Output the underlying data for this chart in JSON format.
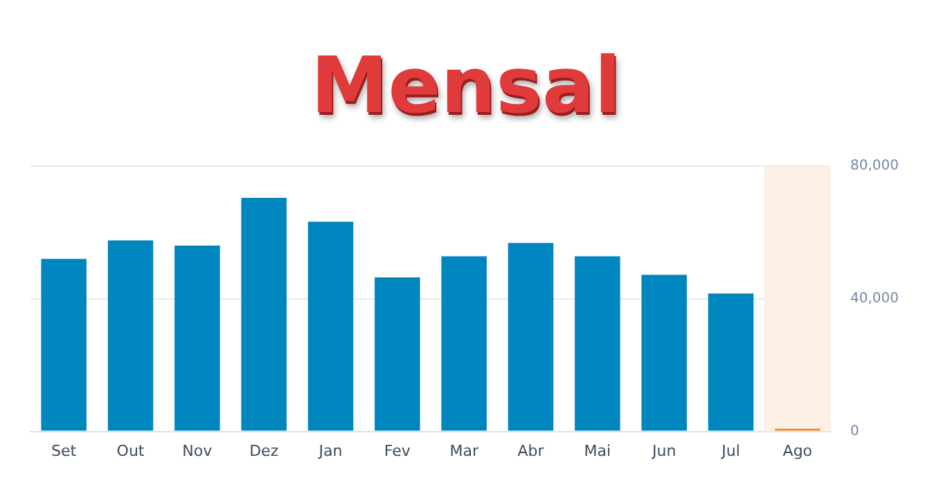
{
  "chart_data": {
    "type": "bar",
    "title": "Mensal",
    "categories": [
      "Set",
      "Out",
      "Nov",
      "Dez",
      "Jan",
      "Fev",
      "Mar",
      "Abr",
      "Mai",
      "Jun",
      "Jul",
      "Ago"
    ],
    "values": [
      52000,
      57600,
      56000,
      70400,
      63200,
      46400,
      52800,
      56800,
      52800,
      47200,
      41600,
      800
    ],
    "colors": [
      "#0086be",
      "#0086be",
      "#0086be",
      "#0086be",
      "#0086be",
      "#0086be",
      "#0086be",
      "#0086be",
      "#0086be",
      "#0086be",
      "#0086be",
      "#ec8a2c"
    ],
    "ylim": [
      0,
      80000
    ],
    "yticks": [
      {
        "value": 0,
        "label": "0"
      },
      {
        "value": 40000,
        "label": "40,000"
      },
      {
        "value": 80000,
        "label": "80,000"
      }
    ],
    "bands": [
      {
        "axis": "x",
        "from": "Ago",
        "to": "Ago",
        "color": "#fcf0e5"
      }
    ],
    "grid": "y",
    "legend": false
  }
}
